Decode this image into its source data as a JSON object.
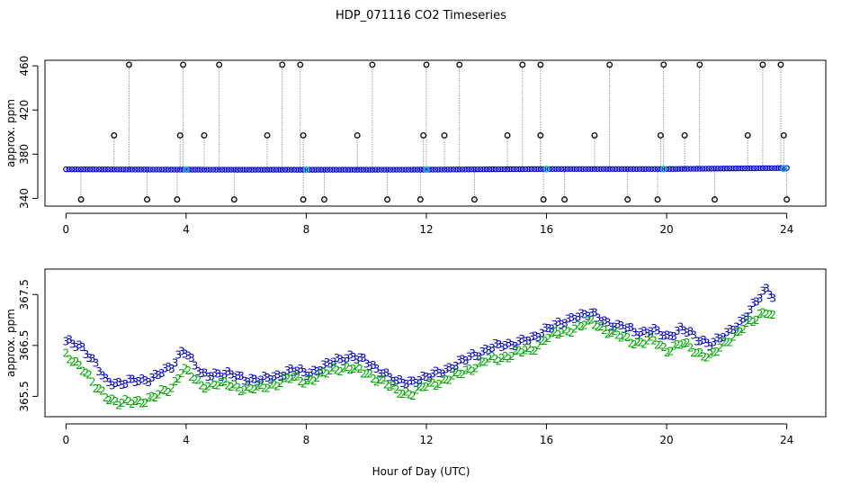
{
  "title": "HDP_071116  CO2 Timeseries",
  "xlabel": "Hour of Day (UTC)",
  "chart_data": [
    {
      "type": "scatter",
      "panel": "top",
      "ylabel": "approx. ppm",
      "xlim": [
        -0.7,
        25.3
      ],
      "ylim": [
        333,
        465
      ],
      "xticks": [
        0,
        4,
        8,
        12,
        16,
        20,
        24
      ],
      "yticks": [
        340,
        380,
        420,
        460
      ],
      "baseline": {
        "x": [
          0,
          4,
          8,
          12,
          16,
          20,
          24
        ],
        "y": [
          366.3,
          366.0,
          365.9,
          366.0,
          366.6,
          366.6,
          367.5
        ],
        "color": "#0000cc"
      },
      "spikes_high": [
        2.1,
        3.9,
        5.1,
        7.2,
        7.8,
        10.2,
        12.0,
        13.1,
        15.2,
        15.8,
        18.1,
        19.9,
        21.1,
        23.2,
        23.8
      ],
      "spikes_mid": [
        1.6,
        3.8,
        4.6,
        6.7,
        7.9,
        9.7,
        11.9,
        12.6,
        14.7,
        15.8,
        17.6,
        19.8,
        20.6,
        22.7,
        23.9
      ],
      "spikes_low": [
        0.5,
        2.7,
        3.7,
        5.6,
        7.9,
        8.6,
        10.7,
        11.8,
        13.6,
        15.9,
        16.6,
        18.7,
        19.7,
        21.6,
        24.0
      ],
      "spike_values": {
        "high": 461,
        "mid": 397,
        "low": 339
      },
      "cyan_points": [
        [
          4.0,
          366.0
        ],
        [
          8.0,
          365.9
        ],
        [
          12.0,
          366.0
        ],
        [
          16.0,
          366.6
        ],
        [
          19.9,
          366.6
        ],
        [
          23.9,
          366.8
        ]
      ]
    },
    {
      "type": "line",
      "panel": "bottom",
      "ylabel": "approx. ppm",
      "xlim": [
        -0.7,
        25.3
      ],
      "ylim": [
        365.1,
        368.0
      ],
      "xticks": [
        0,
        4,
        8,
        12,
        16,
        20,
        24
      ],
      "yticks": [
        365.5,
        366.5,
        367.5
      ],
      "series": [
        {
          "name": "3",
          "color": "#0000cc",
          "x": [
            0,
            0.5,
            1.0,
            1.3,
            1.8,
            2.5,
            3.0,
            3.5,
            3.9,
            4.5,
            5.0,
            5.5,
            6.0,
            6.5,
            7.0,
            7.5,
            8.0,
            8.5,
            9.0,
            9.5,
            10.0,
            10.5,
            11.0,
            11.5,
            12.0,
            12.5,
            13.0,
            13.5,
            14.0,
            14.5,
            15.0,
            15.5,
            16.0,
            16.5,
            17.0,
            17.5,
            18.0,
            18.5,
            19.0,
            19.5,
            20.0,
            20.5,
            21.0,
            21.5,
            22.0,
            22.5,
            23.0,
            23.3,
            23.6
          ],
          "y": [
            366.55,
            366.5,
            366.1,
            365.8,
            365.75,
            365.8,
            365.9,
            366.05,
            366.45,
            365.9,
            365.95,
            365.9,
            365.85,
            365.8,
            365.9,
            366.0,
            365.95,
            366.05,
            366.2,
            366.3,
            366.15,
            366.0,
            365.75,
            365.8,
            365.85,
            366.0,
            366.1,
            366.3,
            366.4,
            366.5,
            366.55,
            366.6,
            366.85,
            366.9,
            367.1,
            367.1,
            366.95,
            366.85,
            366.75,
            366.8,
            366.65,
            366.85,
            366.6,
            366.55,
            366.7,
            367.0,
            367.35,
            367.6,
            367.45
          ]
        },
        {
          "name": "2",
          "color": "#00aa00",
          "x": [
            0,
            0.5,
            1.0,
            1.5,
            1.8,
            2.5,
            3.0,
            3.5,
            3.9,
            4.5,
            5.0,
            5.5,
            6.0,
            6.5,
            7.0,
            7.5,
            8.0,
            8.5,
            9.0,
            9.5,
            10.0,
            10.5,
            11.0,
            11.5,
            12.0,
            12.5,
            13.0,
            13.5,
            14.0,
            14.5,
            15.0,
            15.5,
            16.0,
            16.5,
            17.0,
            17.5,
            18.0,
            18.5,
            19.0,
            19.5,
            20.0,
            20.5,
            21.0,
            21.5,
            22.0,
            22.5,
            23.0,
            23.3,
            23.6
          ],
          "y": [
            366.3,
            366.1,
            365.65,
            365.45,
            365.35,
            365.4,
            365.5,
            365.65,
            366.05,
            365.7,
            365.75,
            365.7,
            365.65,
            365.65,
            365.75,
            365.85,
            365.8,
            365.9,
            366.05,
            366.05,
            365.95,
            365.8,
            365.6,
            365.55,
            365.7,
            365.8,
            365.9,
            366.05,
            366.2,
            366.25,
            366.35,
            366.4,
            366.65,
            366.75,
            366.85,
            366.95,
            366.8,
            366.65,
            366.55,
            366.6,
            366.4,
            366.55,
            366.35,
            366.3,
            366.55,
            366.85,
            367.0,
            367.2,
            367.05
          ]
        }
      ]
    }
  ]
}
